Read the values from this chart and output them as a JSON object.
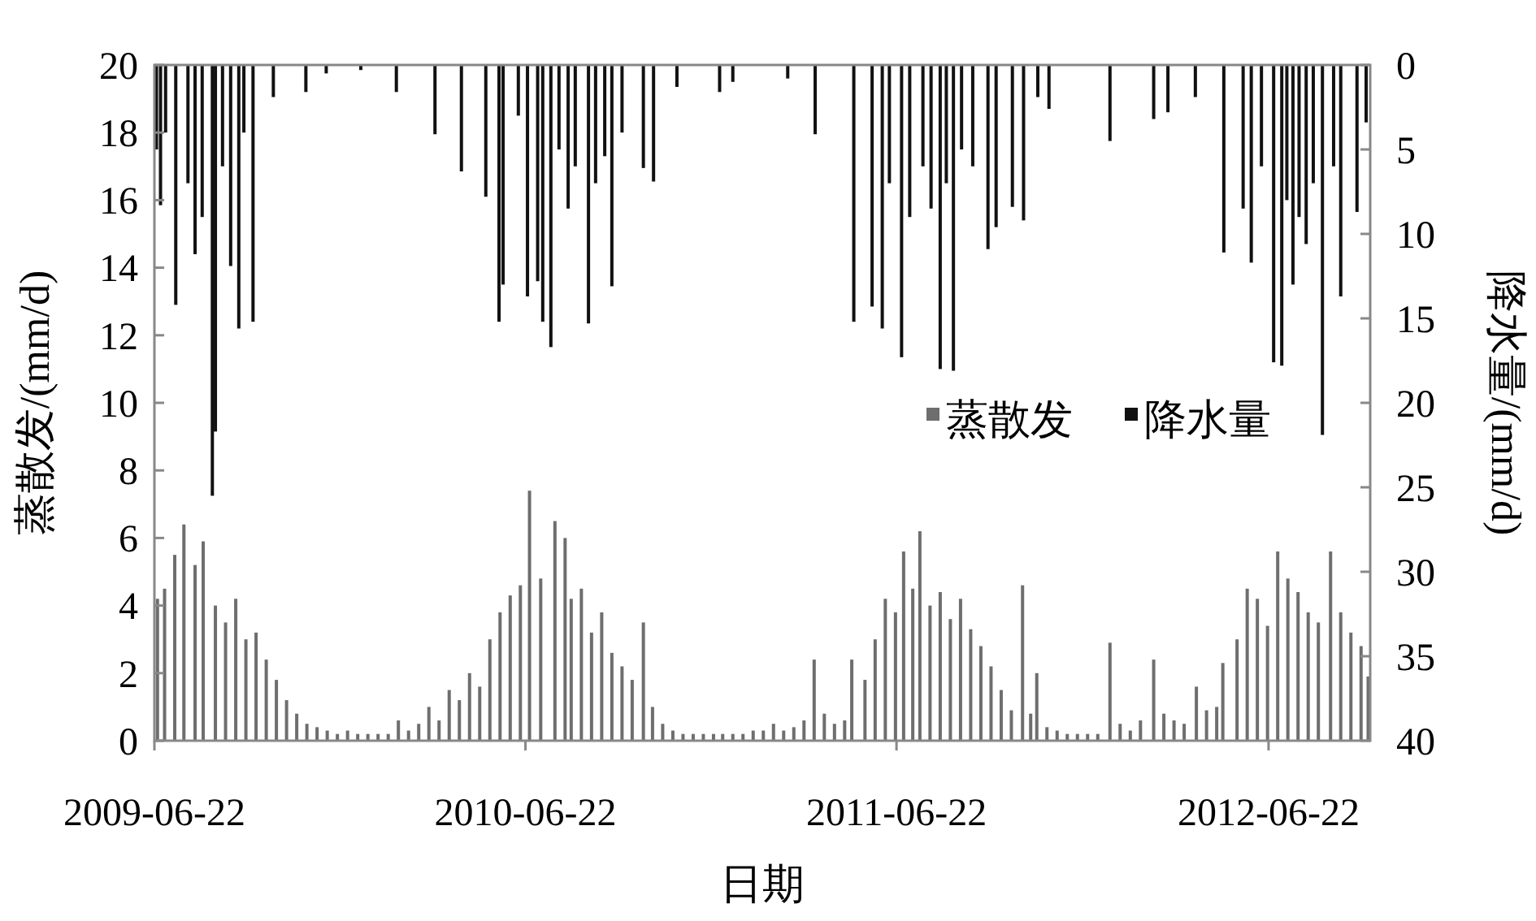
{
  "chart_data": {
    "type": "bar",
    "xlabel": "日期",
    "ylabel": "蒸散发/(mm/d)",
    "y2label": "降水量/(mm/d)",
    "xlim": [
      "2009-06-22",
      "2012-09-30"
    ],
    "xticks": [
      "2009-06-22",
      "2010-06-22",
      "2011-06-22",
      "2012-06-22"
    ],
    "ylim": [
      0,
      20
    ],
    "yticks": [
      0,
      2,
      4,
      6,
      8,
      10,
      12,
      14,
      16,
      18,
      20
    ],
    "y2lim": [
      40,
      0
    ],
    "y2ticks": [
      0,
      5,
      10,
      15,
      20,
      25,
      30,
      35,
      40
    ],
    "legend": "right",
    "grid": false,
    "series": [
      {
        "name": "蒸散发",
        "color": "#6e6e6e",
        "x": [
          "2009-06-25",
          "2009-07-02",
          "2009-07-12",
          "2009-07-21",
          "2009-08-01",
          "2009-08-09",
          "2009-08-21",
          "2009-08-31",
          "2009-09-10",
          "2009-09-20",
          "2009-09-30",
          "2009-10-10",
          "2009-10-20",
          "2009-10-30",
          "2009-11-09",
          "2009-11-19",
          "2009-11-29",
          "2009-12-09",
          "2009-12-19",
          "2009-12-29",
          "2010-01-08",
          "2010-01-18",
          "2010-01-28",
          "2010-02-07",
          "2010-02-17",
          "2010-02-27",
          "2010-03-09",
          "2010-03-19",
          "2010-03-29",
          "2010-04-08",
          "2010-04-18",
          "2010-04-28",
          "2010-05-08",
          "2010-05-18",
          "2010-05-28",
          "2010-06-07",
          "2010-06-17",
          "2010-06-26",
          "2010-07-07",
          "2010-07-21",
          "2010-07-31",
          "2010-08-06",
          "2010-08-16",
          "2010-08-26",
          "2010-09-05",
          "2010-09-15",
          "2010-09-25",
          "2010-10-05",
          "2010-10-16",
          "2010-10-25",
          "2010-11-04",
          "2010-11-14",
          "2010-11-24",
          "2010-12-04",
          "2010-12-14",
          "2010-12-24",
          "2011-01-02",
          "2011-01-12",
          "2011-01-22",
          "2011-02-01",
          "2011-02-11",
          "2011-02-21",
          "2011-03-03",
          "2011-03-13",
          "2011-03-23",
          "2011-04-02",
          "2011-04-12",
          "2011-04-22",
          "2011-05-02",
          "2011-05-09",
          "2011-05-22",
          "2011-06-01",
          "2011-06-11",
          "2011-06-21",
          "2011-06-29",
          "2011-07-08",
          "2011-07-15",
          "2011-07-25",
          "2011-08-04",
          "2011-08-14",
          "2011-08-24",
          "2011-09-03",
          "2011-09-13",
          "2011-09-23",
          "2011-10-03",
          "2011-10-13",
          "2011-10-24",
          "2011-11-01",
          "2011-11-07",
          "2011-11-17",
          "2011-11-27",
          "2011-12-07",
          "2011-12-17",
          "2011-12-27",
          "2012-01-06",
          "2012-01-18",
          "2012-01-28",
          "2012-02-07",
          "2012-02-17",
          "2012-03-01",
          "2012-03-11",
          "2012-03-21",
          "2012-03-31",
          "2012-04-12",
          "2012-04-22",
          "2012-05-02",
          "2012-05-08",
          "2012-05-22",
          "2012-06-01",
          "2012-06-11",
          "2012-06-21",
          "2012-07-01",
          "2012-07-11",
          "2012-07-21",
          "2012-07-31",
          "2012-08-10",
          "2012-08-22",
          "2012-09-01",
          "2012-09-11",
          "2012-09-21",
          "2012-09-28"
        ],
        "values": [
          4.2,
          4.5,
          5.5,
          6.4,
          5.2,
          5.9,
          4.0,
          3.5,
          4.2,
          3.0,
          3.2,
          2.4,
          1.8,
          1.2,
          0.8,
          0.5,
          0.4,
          0.3,
          0.2,
          0.3,
          0.2,
          0.2,
          0.2,
          0.2,
          0.6,
          0.3,
          0.5,
          1.0,
          0.6,
          1.5,
          1.2,
          2.0,
          1.6,
          3.0,
          3.8,
          4.3,
          4.6,
          7.4,
          4.8,
          6.5,
          6.0,
          4.2,
          4.5,
          3.2,
          3.8,
          2.6,
          2.2,
          1.8,
          3.5,
          1.0,
          0.5,
          0.3,
          0.2,
          0.2,
          0.2,
          0.2,
          0.2,
          0.2,
          0.2,
          0.3,
          0.3,
          0.5,
          0.3,
          0.4,
          0.6,
          2.4,
          0.8,
          0.5,
          0.6,
          2.4,
          1.8,
          3.0,
          4.2,
          3.8,
          5.6,
          4.5,
          6.2,
          4.0,
          4.4,
          3.6,
          4.2,
          3.3,
          2.8,
          2.2,
          1.5,
          0.9,
          4.6,
          0.8,
          2.0,
          0.4,
          0.3,
          0.2,
          0.2,
          0.2,
          0.2,
          2.9,
          0.5,
          0.3,
          0.6,
          2.4,
          0.8,
          0.6,
          0.5,
          1.6,
          0.9,
          1.0,
          2.3,
          3.0,
          4.5,
          4.2,
          3.4,
          5.6,
          4.8,
          4.4,
          3.8,
          3.5,
          5.6,
          3.8,
          3.2,
          2.8,
          1.9
        ]
      },
      {
        "name": "降水量",
        "color": "#111111",
        "axis": "y2",
        "x": [
          "2009-06-24",
          "2009-06-28",
          "2009-07-03",
          "2009-07-13",
          "2009-07-25",
          "2009-08-01",
          "2009-08-08",
          "2009-08-18",
          "2009-08-21",
          "2009-08-28",
          "2009-09-05",
          "2009-09-13",
          "2009-09-18",
          "2009-09-27",
          "2009-10-17",
          "2009-11-18",
          "2009-12-08",
          "2010-01-11",
          "2010-02-15",
          "2010-03-25",
          "2010-04-20",
          "2010-05-14",
          "2010-05-27",
          "2010-05-31",
          "2010-06-15",
          "2010-06-24",
          "2010-07-04",
          "2010-07-09",
          "2010-07-17",
          "2010-07-25",
          "2010-08-03",
          "2010-08-10",
          "2010-08-23",
          "2010-08-30",
          "2010-09-08",
          "2010-09-15",
          "2010-09-25",
          "2010-10-16",
          "2010-10-26",
          "2010-11-18",
          "2010-12-30",
          "2011-01-12",
          "2011-03-07",
          "2011-04-03",
          "2011-05-11",
          "2011-05-29",
          "2011-06-08",
          "2011-06-15",
          "2011-06-27",
          "2011-07-05",
          "2011-07-18",
          "2011-07-26",
          "2011-08-04",
          "2011-08-10",
          "2011-08-17",
          "2011-08-25",
          "2011-09-05",
          "2011-09-20",
          "2011-09-28",
          "2011-10-14",
          "2011-10-25",
          "2011-11-08",
          "2011-11-19",
          "2012-01-18",
          "2012-03-01",
          "2012-03-15",
          "2012-04-11",
          "2012-05-09",
          "2012-05-28",
          "2012-06-05",
          "2012-06-15",
          "2012-06-27",
          "2012-07-05",
          "2012-07-10",
          "2012-07-16",
          "2012-07-22",
          "2012-07-29",
          "2012-08-05",
          "2012-08-14",
          "2012-08-25",
          "2012-09-01",
          "2012-09-17",
          "2012-09-26"
        ],
        "values": [
          5,
          8.3,
          4,
          14.2,
          7,
          11.2,
          9,
          25.5,
          21.7,
          6,
          11.9,
          15.6,
          4,
          15.2,
          1.9,
          1.6,
          0.5,
          0.3,
          1.6,
          4.1,
          6.3,
          7.8,
          15.2,
          13.0,
          3,
          13.7,
          12.8,
          15.2,
          16.7,
          5,
          8.5,
          6,
          15.3,
          7,
          5.4,
          13.1,
          4,
          6.1,
          6.9,
          1.3,
          1.6,
          1.0,
          0.8,
          4.1,
          15.2,
          14.3,
          15.6,
          7,
          17.3,
          9,
          6,
          8.5,
          18.0,
          7,
          18.1,
          5,
          6,
          10.9,
          9.6,
          8.4,
          9.2,
          1.9,
          2.6,
          4.5,
          3.2,
          2.8,
          1.9,
          11.1,
          8.5,
          11.7,
          6,
          17.6,
          17.8,
          8,
          13.0,
          9,
          10.6,
          7,
          21.9,
          6,
          13.7,
          8.7,
          3.4
        ]
      }
    ]
  }
}
